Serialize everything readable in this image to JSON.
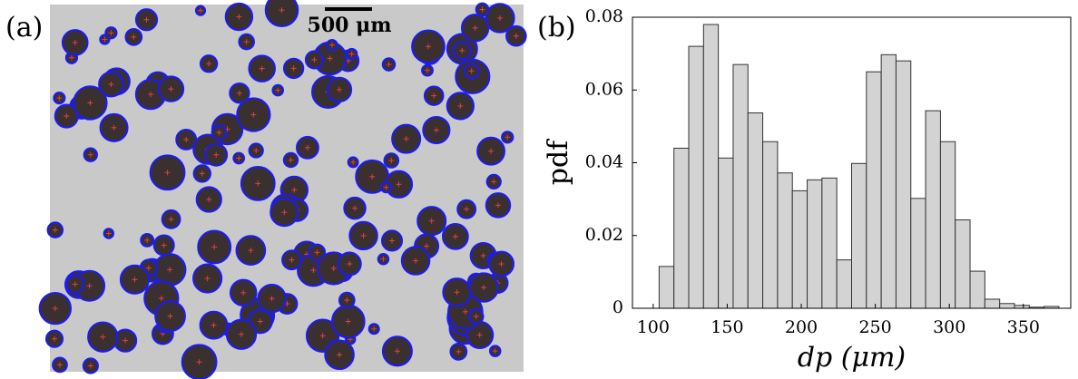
{
  "panels": [
    {
      "label": "(a)",
      "scale_bar": "500 μm"
    },
    {
      "label": "(b)"
    }
  ],
  "chart_data": {
    "type": "histogram",
    "xlabel": "dp (μm)",
    "ylabel": "pdf",
    "bins": [
      104,
      114,
      124,
      134,
      144,
      154,
      164,
      174,
      184,
      194,
      204,
      214,
      224,
      234,
      244,
      254,
      264,
      274,
      284,
      294,
      304,
      314,
      324,
      334,
      344,
      354,
      364,
      374
    ],
    "values": [
      0.0115,
      0.044,
      0.072,
      0.078,
      0.0413,
      0.067,
      0.0537,
      0.0458,
      0.0372,
      0.0323,
      0.0353,
      0.0358,
      0.0133,
      0.0398,
      0.065,
      0.0697,
      0.068,
      0.0302,
      0.0543,
      0.0458,
      0.0243,
      0.0102,
      0.0025,
      0.0013,
      0.0008,
      0.0003,
      0.0005
    ],
    "color": "#d3d3d3",
    "xlim": [
      86,
      382
    ],
    "xticks": [
      100,
      150,
      200,
      250,
      300,
      350
    ],
    "ylim": [
      0,
      0.08
    ],
    "yticks": [
      0,
      0.02,
      0.04,
      0.06,
      0.08
    ]
  }
}
